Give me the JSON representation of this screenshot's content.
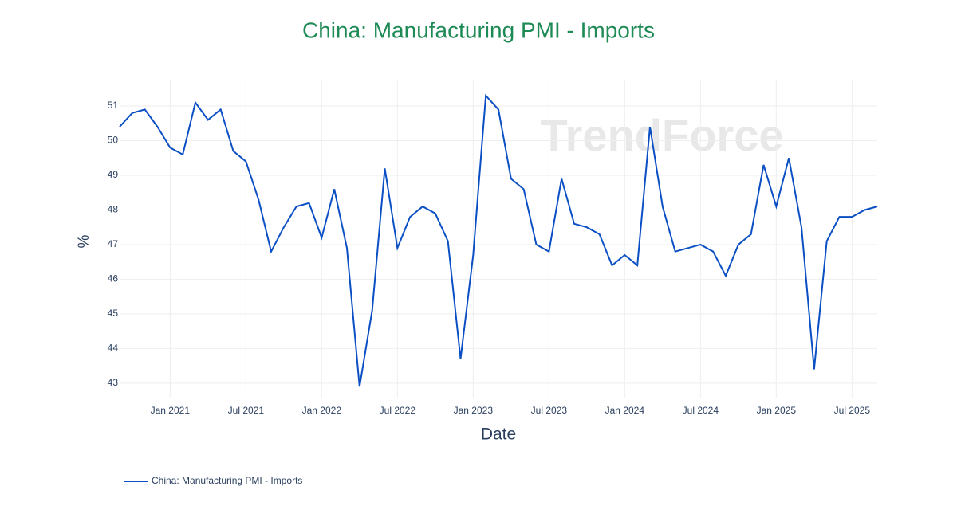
{
  "chart_data": {
    "type": "line",
    "title": "China: Manufacturing PMI - Imports",
    "x_label": "Date",
    "y_label": "%",
    "watermark": "TrendForce",
    "x": [
      "2020-09",
      "2020-10",
      "2020-11",
      "2020-12",
      "2021-01",
      "2021-02",
      "2021-03",
      "2021-04",
      "2021-05",
      "2021-06",
      "2021-07",
      "2021-08",
      "2021-09",
      "2021-10",
      "2021-11",
      "2021-12",
      "2022-01",
      "2022-02",
      "2022-03",
      "2022-04",
      "2022-05",
      "2022-06",
      "2022-07",
      "2022-08",
      "2022-09",
      "2022-10",
      "2022-11",
      "2022-12",
      "2023-01",
      "2023-02",
      "2023-03",
      "2023-04",
      "2023-05",
      "2023-06",
      "2023-07",
      "2023-08",
      "2023-09",
      "2023-10",
      "2023-11",
      "2023-12",
      "2024-01",
      "2024-02",
      "2024-03",
      "2024-04",
      "2024-05",
      "2024-06",
      "2024-07",
      "2024-08",
      "2024-09",
      "2024-10",
      "2024-11",
      "2024-12",
      "2025-01",
      "2025-02",
      "2025-03",
      "2025-04",
      "2025-05",
      "2025-06",
      "2025-07",
      "2025-08",
      "2025-09"
    ],
    "series": [
      {
        "name": "China: Manufacturing PMI - Imports",
        "color": "#0b4fc4",
        "values": [
          50.4,
          50.8,
          50.9,
          50.4,
          49.8,
          49.6,
          51.1,
          50.6,
          50.9,
          49.7,
          49.4,
          48.3,
          46.8,
          47.5,
          48.1,
          48.2,
          47.2,
          48.6,
          46.9,
          42.9,
          45.1,
          49.2,
          46.9,
          47.8,
          48.1,
          47.9,
          47.1,
          43.7,
          46.7,
          51.3,
          50.9,
          48.9,
          48.6,
          47.0,
          46.8,
          48.9,
          47.6,
          47.5,
          47.3,
          46.4,
          46.7,
          46.4,
          50.4,
          48.1,
          46.8,
          46.9,
          47.0,
          46.8,
          46.1,
          47.0,
          47.3,
          49.3,
          48.1,
          49.5,
          47.5,
          43.4,
          47.1,
          47.8,
          47.8,
          48.0,
          48.1
        ]
      }
    ],
    "xlim": [
      "2020-09",
      "2025-09"
    ],
    "xticks": [
      {
        "value": "2021-01",
        "label": "Jan 2021"
      },
      {
        "value": "2021-07",
        "label": "Jul 2021"
      },
      {
        "value": "2022-01",
        "label": "Jan 2022"
      },
      {
        "value": "2022-07",
        "label": "Jul 2022"
      },
      {
        "value": "2023-01",
        "label": "Jan 2023"
      },
      {
        "value": "2023-07",
        "label": "Jul 2023"
      },
      {
        "value": "2024-01",
        "label": "Jan 2024"
      },
      {
        "value": "2024-07",
        "label": "Jul 2024"
      },
      {
        "value": "2025-01",
        "label": "Jan 2025"
      },
      {
        "value": "2025-07",
        "label": "Jul 2025"
      }
    ],
    "ylim": [
      42.56,
      51.76
    ],
    "yticks": [
      43,
      44,
      45,
      46,
      47,
      48,
      49,
      50,
      51
    ],
    "grid": true
  }
}
